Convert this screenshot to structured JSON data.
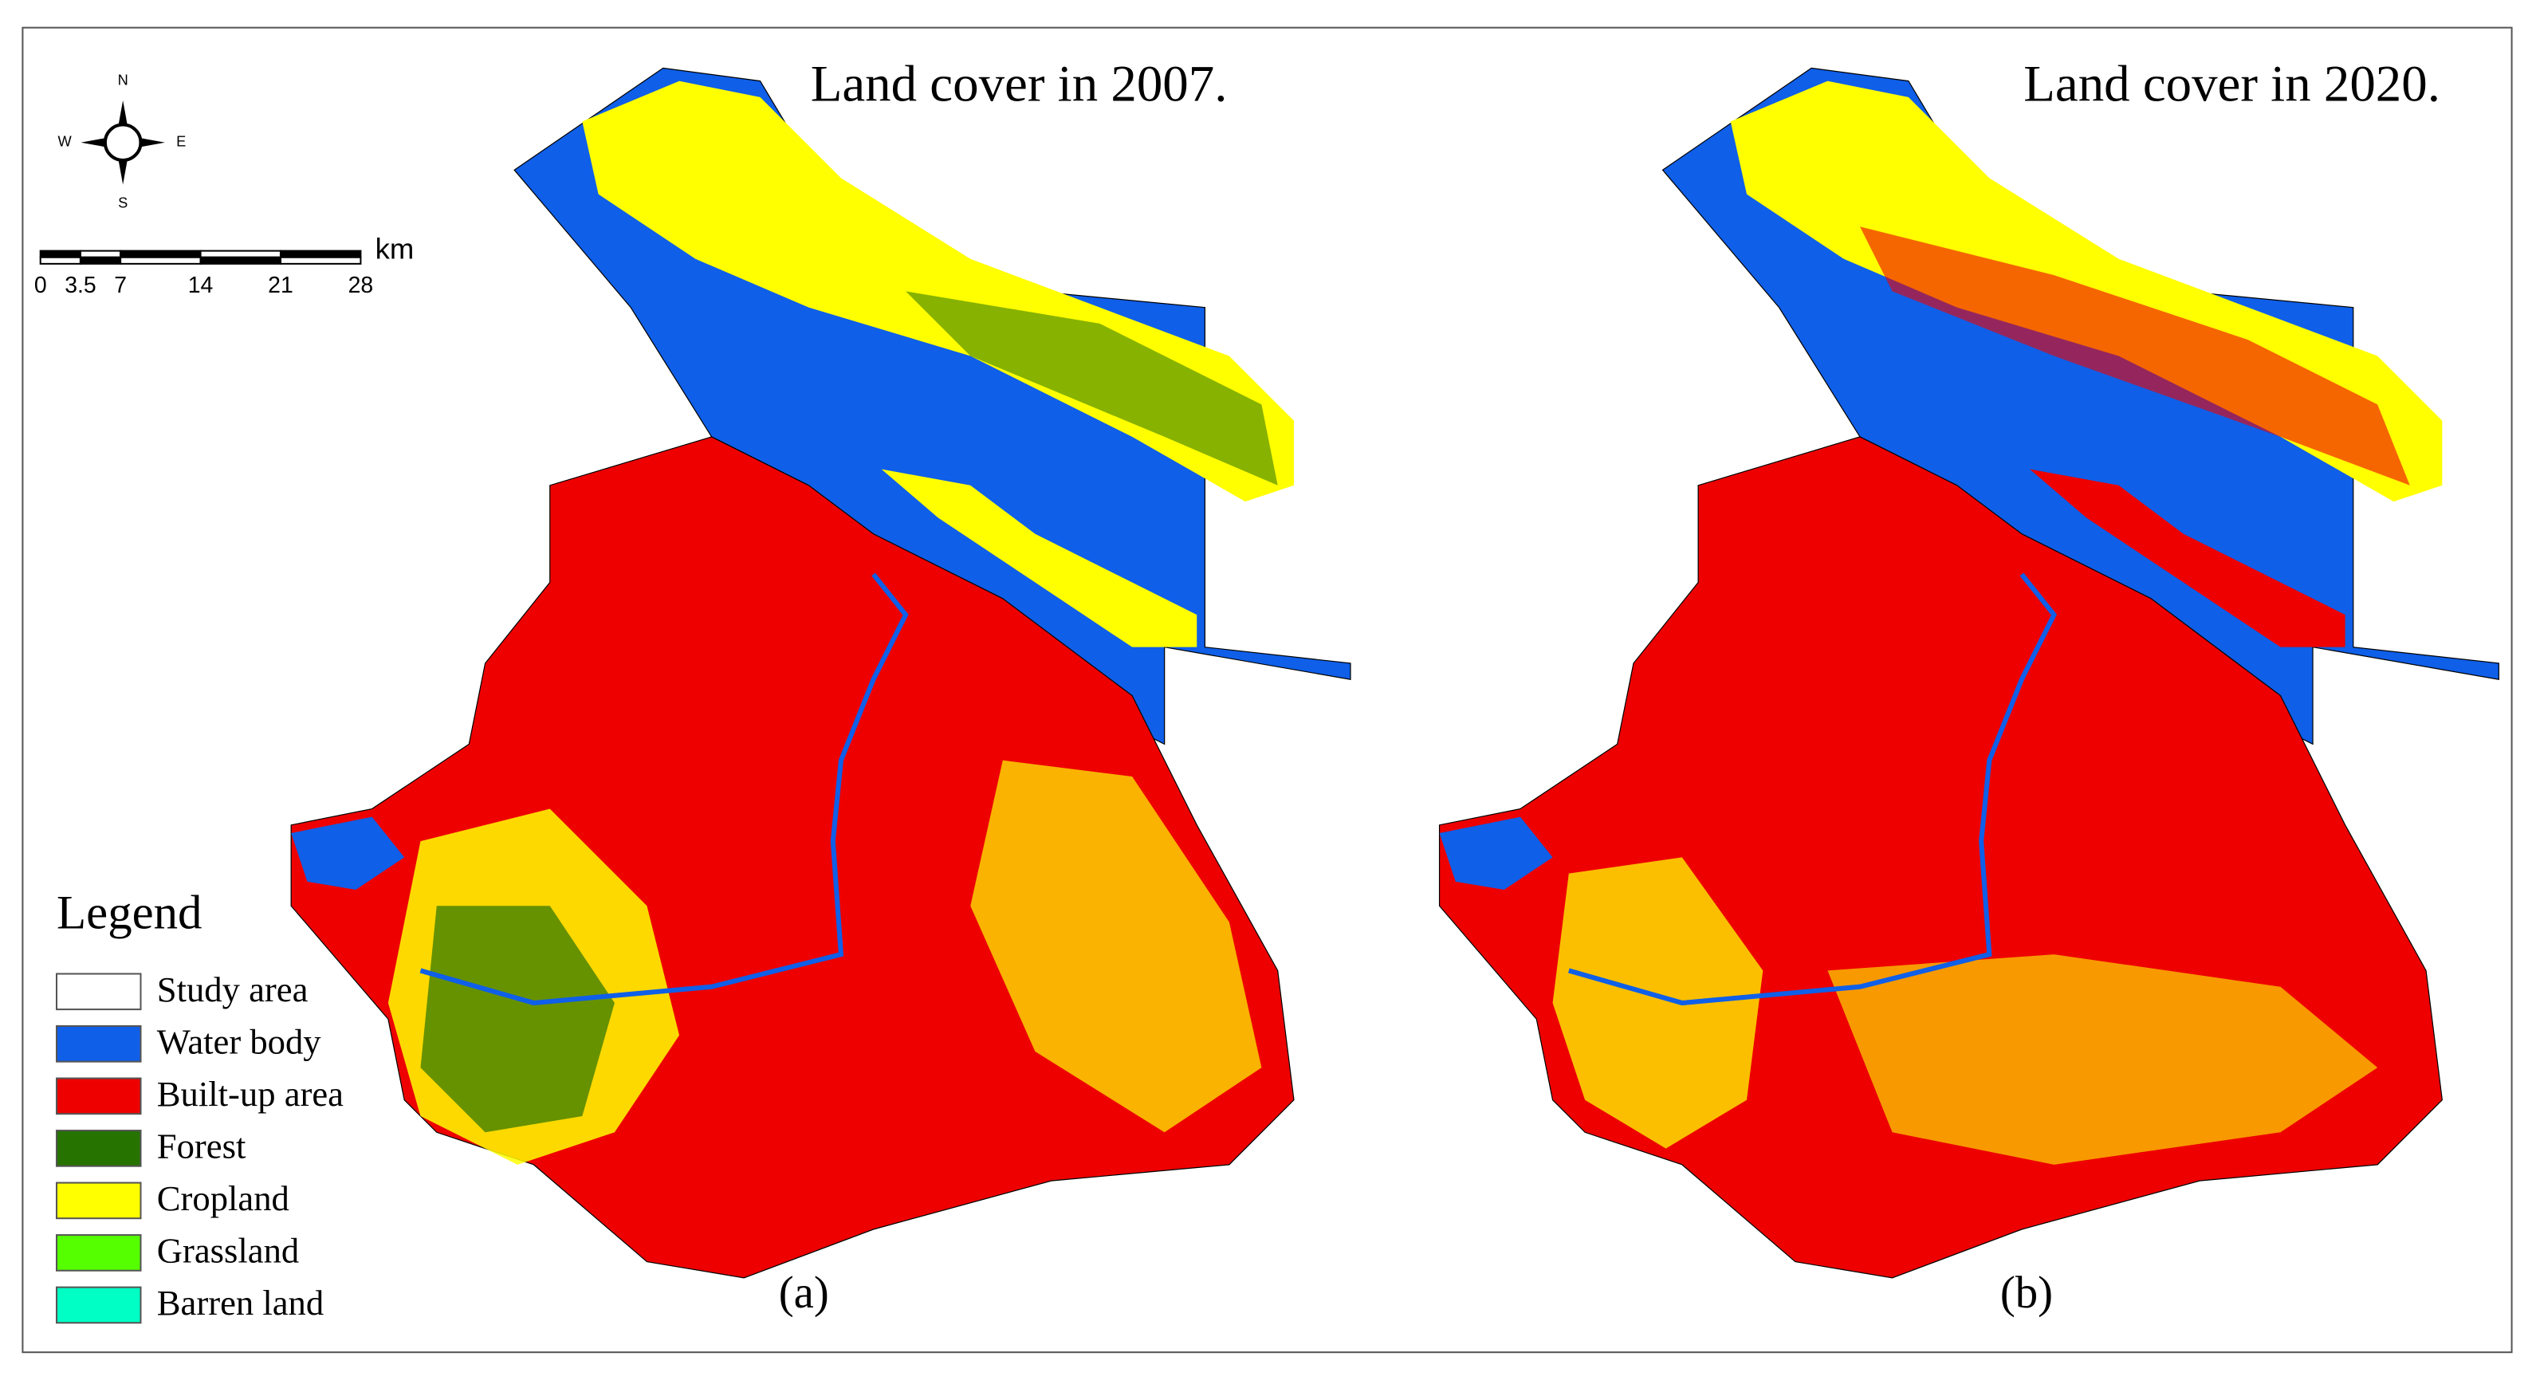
{
  "maps": [
    {
      "title": "Land cover in 2007.",
      "panel": "(a)"
    },
    {
      "title": "Land cover in 2020.",
      "panel": "(b)"
    }
  ],
  "compass": {
    "north": "N",
    "south": "S",
    "west": "W",
    "east": "E"
  },
  "scale_bar": {
    "ticks": [
      0,
      3.5,
      7,
      14,
      21,
      28
    ],
    "unit": "km"
  },
  "legend": {
    "title": "Legend",
    "items": [
      {
        "name": "Study area",
        "color": "#ffffff"
      },
      {
        "name": "Water body",
        "color": "#0f5fe8"
      },
      {
        "name": "Built-up area",
        "color": "#ee0000"
      },
      {
        "name": "Forest",
        "color": "#267300"
      },
      {
        "name": "Cropland",
        "color": "#ffff00"
      },
      {
        "name": "Grassland",
        "color": "#55ff00"
      },
      {
        "name": "Barren land",
        "color": "#00ffc5"
      }
    ]
  }
}
